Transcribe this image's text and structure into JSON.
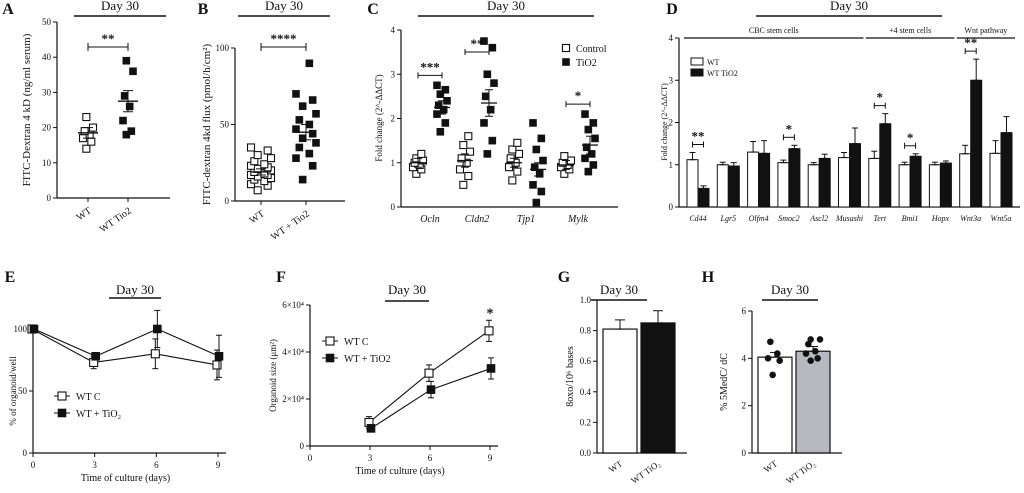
{
  "figure": {
    "panel_labels": [
      "A",
      "B",
      "C",
      "D",
      "E",
      "F",
      "G",
      "H"
    ]
  },
  "chart_data": [
    {
      "id": "A",
      "type": "scatter",
      "title": "Day 30",
      "ylabel": "FITC-Dextran 4 kD (ng/ml serum)",
      "ylim": [
        0,
        50
      ],
      "yticks": [
        0,
        10,
        20,
        30,
        40,
        50
      ],
      "categories": [
        "WT",
        "WT Tio2"
      ],
      "significance": "**",
      "groups": [
        {
          "name": "WT",
          "marker": "open-square",
          "mean": 18.5,
          "sem": 1.5,
          "points": [
            14,
            16,
            17,
            18,
            19,
            20,
            23
          ]
        },
        {
          "name": "WT Tio2",
          "marker": "filled-square",
          "mean": 27.5,
          "sem": 3.0,
          "points": [
            18,
            19,
            22,
            26,
            29,
            36,
            39
          ]
        }
      ]
    },
    {
      "id": "B",
      "type": "scatter",
      "title": "Day 30",
      "ylabel": "FITC-dextran 4kd flux (pmol/h/cm²)",
      "ylim": [
        0,
        100
      ],
      "yticks": [
        0,
        50,
        100
      ],
      "categories": [
        "WT",
        "WT + Tio2"
      ],
      "significance": "****",
      "groups": [
        {
          "name": "WT",
          "marker": "open-square",
          "mean": 19,
          "sem": 2,
          "points": [
            7,
            10,
            11,
            13,
            14,
            15,
            16,
            17,
            17,
            18,
            19,
            20,
            21,
            22,
            23,
            24,
            26,
            28,
            30,
            33,
            35
          ]
        },
        {
          "name": "WT + Tio2",
          "marker": "filled-square",
          "mean": 45,
          "sem": 5,
          "points": [
            14,
            23,
            28,
            31,
            35,
            38,
            41,
            44,
            47,
            50,
            53,
            57,
            62,
            66,
            70,
            90
          ]
        }
      ]
    },
    {
      "id": "C",
      "type": "scatter",
      "title": "Day 30",
      "ylabel": "Fold change (2^-ΔΔCT)",
      "ylim": [
        0,
        4
      ],
      "yticks": [
        0,
        1,
        2,
        3,
        4
      ],
      "categories": [
        "Ocln",
        "Cldn2",
        "Tjp1",
        "Mylk"
      ],
      "legend": [
        "Control",
        "TiO2"
      ],
      "legend_position": "top-right",
      "significance": [
        "***",
        "**",
        "",
        "*"
      ],
      "series": [
        {
          "name": "Control",
          "marker": "open-square",
          "groups": [
            {
              "mean": 1.0,
              "sem": 0.1,
              "points": [
                0.75,
                0.85,
                0.9,
                0.95,
                1.0,
                1.05,
                1.1,
                1.2
              ]
            },
            {
              "mean": 1.05,
              "sem": 0.15,
              "points": [
                0.5,
                0.7,
                0.85,
                1.0,
                1.1,
                1.25,
                1.4,
                1.6
              ]
            },
            {
              "mean": 1.0,
              "sem": 0.1,
              "points": [
                0.6,
                0.8,
                0.9,
                1.0,
                1.1,
                1.2,
                1.3,
                1.45
              ]
            },
            {
              "mean": 0.95,
              "sem": 0.1,
              "points": [
                0.75,
                0.85,
                0.9,
                0.95,
                1.0,
                1.05,
                1.15
              ]
            }
          ]
        },
        {
          "name": "TiO2",
          "marker": "filled-square",
          "groups": [
            {
              "mean": 2.25,
              "sem": 0.15,
              "points": [
                1.7,
                1.9,
                2.1,
                2.2,
                2.3,
                2.4,
                2.55,
                2.65,
                2.75
              ]
            },
            {
              "mean": 2.35,
              "sem": 0.3,
              "points": [
                1.2,
                1.5,
                1.9,
                2.2,
                2.5,
                2.8,
                3.0,
                3.6,
                3.75
              ]
            },
            {
              "mean": 0.85,
              "sem": 0.15,
              "points": [
                0.1,
                0.35,
                0.5,
                0.75,
                0.9,
                1.05,
                1.3,
                1.55,
                1.9
              ]
            },
            {
              "mean": 1.4,
              "sem": 0.2,
              "points": [
                0.8,
                0.95,
                1.1,
                1.2,
                1.35,
                1.55,
                1.75,
                1.9,
                2.1
              ]
            }
          ]
        }
      ]
    },
    {
      "id": "D",
      "type": "bar",
      "title": "Day 30",
      "ylabel": "Fold change (2^-ΔΔCT)",
      "ylim": [
        0,
        4
      ],
      "yticks": [
        0,
        1,
        2,
        3,
        4
      ],
      "categories": [
        "Cd44",
        "Lgr5",
        "Olfm4",
        "Smoc2",
        "Ascl2",
        "Musashi",
        "Tert",
        "Bmi1",
        "Hopx",
        "Wnt3a",
        "Wnt5a"
      ],
      "group_labels": [
        {
          "label": "CBC stem cells",
          "from": 0,
          "to": 5
        },
        {
          "label": "+4 stem cells",
          "from": 6,
          "to": 8
        },
        {
          "label": "Wnt pathway",
          "from": 9,
          "to": 10
        }
      ],
      "legend": [
        "WT",
        "WT TiO2"
      ],
      "legend_position": "top-left",
      "significance": [
        "**",
        "",
        "",
        "*",
        "",
        "",
        "*",
        "*",
        "",
        "**",
        ""
      ],
      "series": [
        {
          "name": "WT",
          "values": [
            1.12,
            1.0,
            1.3,
            1.05,
            1.0,
            1.17,
            1.15,
            1.0,
            1.0,
            1.26,
            1.27
          ],
          "errors": [
            0.17,
            0.06,
            0.25,
            0.06,
            0.05,
            0.12,
            0.17,
            0.06,
            0.06,
            0.2,
            0.3
          ]
        },
        {
          "name": "WT TiO2",
          "values": [
            0.44,
            0.97,
            1.27,
            1.38,
            1.15,
            1.5,
            1.97,
            1.2,
            1.04,
            3.0,
            1.76
          ],
          "errors": [
            0.06,
            0.08,
            0.3,
            0.08,
            0.1,
            0.37,
            0.24,
            0.06,
            0.05,
            0.5,
            0.38
          ]
        }
      ]
    },
    {
      "id": "E",
      "type": "line",
      "title": "Day 30",
      "xlabel": "Time of culture (days)",
      "ylabel": "% of organoid/well",
      "x": [
        0,
        3,
        6,
        9
      ],
      "xticks": [
        0,
        3,
        6,
        9
      ],
      "ylim": [
        0,
        100
      ],
      "yticks": [
        0,
        50,
        100
      ],
      "legend": [
        "WT C",
        "WT + TiO₂"
      ],
      "legend_position": "bottom-left",
      "series": [
        {
          "name": "WT C",
          "marker": "open-square",
          "values": [
            100,
            73,
            80,
            71
          ],
          "errors": [
            0,
            5,
            12,
            12
          ]
        },
        {
          "name": "WT + TiO₂",
          "marker": "filled-square",
          "values": [
            100,
            78,
            100,
            78
          ],
          "errors": [
            0,
            3,
            15,
            17
          ]
        }
      ]
    },
    {
      "id": "F",
      "type": "line",
      "title": "Day 30",
      "xlabel": "Time of culture (days)",
      "ylabel": "Organoid size (μm²)",
      "x": [
        3,
        6,
        9
      ],
      "xticks": [
        0,
        3,
        6,
        9
      ],
      "ylim": [
        0,
        60000
      ],
      "yticks": [
        0,
        20000,
        40000,
        60000
      ],
      "ytick_labels": [
        "0",
        "2×10⁴",
        "4×10⁴",
        "6×10⁴"
      ],
      "legend": [
        "WT C",
        "WT + TiO2"
      ],
      "legend_position": "top-left",
      "significance_at_x": {
        "x": 9,
        "label": "*"
      },
      "series": [
        {
          "name": "WT C",
          "marker": "open-square",
          "values": [
            10000,
            31000,
            49000
          ],
          "errors": [
            2500,
            3500,
            4500
          ]
        },
        {
          "name": "WT + TiO2",
          "marker": "filled-square",
          "values": [
            7500,
            24000,
            33000
          ],
          "errors": [
            1500,
            3500,
            4500
          ]
        }
      ]
    },
    {
      "id": "G",
      "type": "bar",
      "title": "Day 30",
      "ylabel": "8oxo/10⁶ bases",
      "ylim": [
        0,
        1.0
      ],
      "yticks": [
        0.0,
        0.2,
        0.4,
        0.6,
        0.8,
        1.0
      ],
      "ytick_labels": [
        "0.0",
        "0.2",
        "0.4",
        "0.6",
        "0.8",
        "1.0"
      ],
      "categories": [
        "WT",
        "WT TiO₂"
      ],
      "values": [
        0.81,
        0.85
      ],
      "errors": [
        0.06,
        0.08
      ],
      "fills": [
        "#ffffff",
        "#111111"
      ]
    },
    {
      "id": "H",
      "type": "bar",
      "title": "Day 30",
      "ylabel": "% 5MedC/ dC",
      "ylim": [
        0,
        6
      ],
      "yticks": [
        0,
        2,
        4,
        6
      ],
      "categories": [
        "WT",
        "WT TiO₂"
      ],
      "values": [
        4.05,
        4.3
      ],
      "errors": [
        0.2,
        0.2
      ],
      "fills": [
        "#ffffff",
        "#b8b8c0"
      ],
      "points": [
        [
          3.3,
          3.9,
          4.0,
          4.2,
          4.7
        ],
        [
          3.9,
          4.0,
          4.2,
          4.3,
          4.6,
          4.8,
          4.8
        ]
      ]
    }
  ]
}
